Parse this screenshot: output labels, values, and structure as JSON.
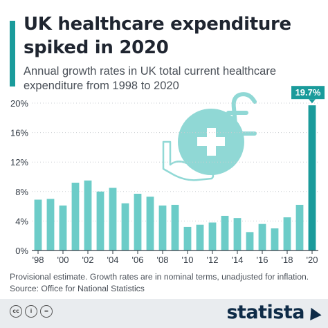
{
  "header": {
    "title": "UK healthcare expenditure spiked in 2020",
    "subtitle": "Annual growth rates in UK total current healthcare expenditure from 1998 to 2020"
  },
  "chart_data": {
    "type": "bar",
    "categories": [
      "1998",
      "1999",
      "2000",
      "2001",
      "2002",
      "2003",
      "2004",
      "2005",
      "2006",
      "2007",
      "2008",
      "2009",
      "2010",
      "2011",
      "2012",
      "2013",
      "2014",
      "2015",
      "2016",
      "2017",
      "2018",
      "2019",
      "2020"
    ],
    "tick_labels": [
      "'98",
      "'00",
      "'02",
      "'04",
      "'06",
      "'08",
      "'10",
      "'12",
      "'14",
      "'16",
      "'18",
      "'20"
    ],
    "values": [
      6.9,
      7.0,
      6.1,
      9.2,
      9.5,
      8.0,
      8.5,
      6.4,
      7.7,
      7.3,
      6.1,
      6.2,
      3.2,
      3.5,
      3.8,
      4.7,
      4.4,
      2.5,
      3.6,
      3.0,
      4.5,
      6.2,
      19.7
    ],
    "y_ticks": [
      "0%",
      "4%",
      "8%",
      "12%",
      "16%",
      "20%"
    ],
    "ylim": [
      0,
      20
    ],
    "highlight_label": "19.7%",
    "bar_color": "#6cccc8",
    "highlight_color": "#1a9b9b",
    "grid": true
  },
  "footer": {
    "note": "Provisional estimate. Growth rates are in nominal terms, unadjusted for inflation.",
    "source": "Source: Office for National Statistics",
    "brand": "statista",
    "cc_icons": [
      "cc-icon",
      "attribution-icon",
      "no-derivatives-icon"
    ]
  }
}
